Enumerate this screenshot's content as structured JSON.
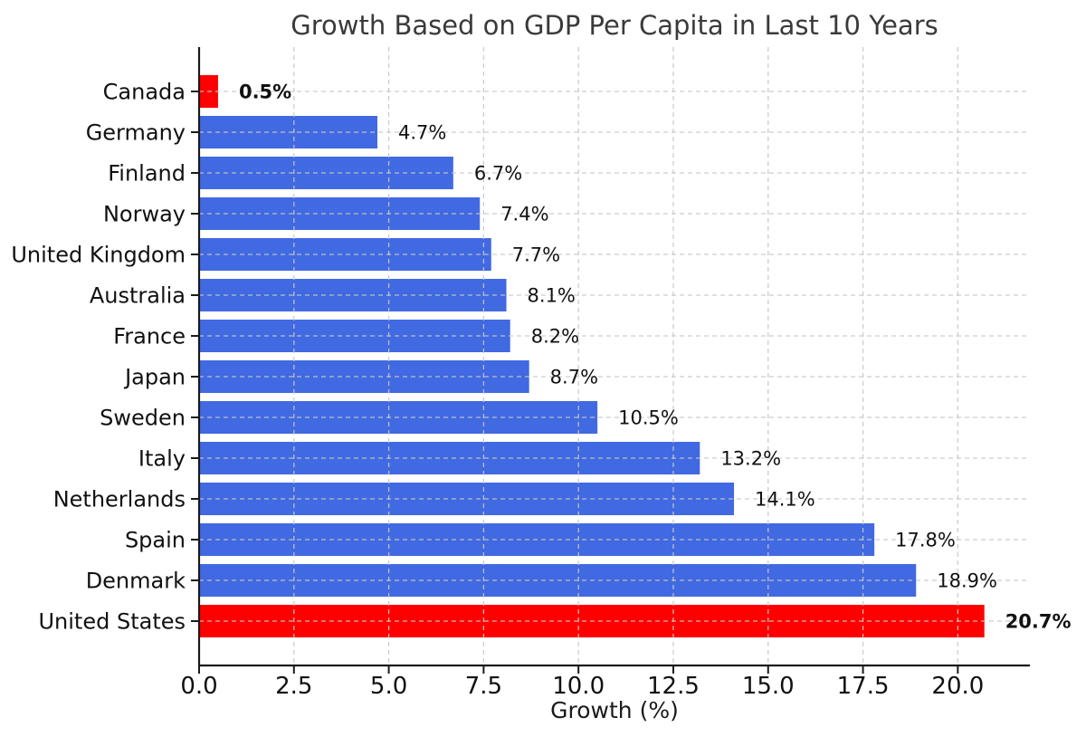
{
  "chart_data": {
    "type": "bar",
    "orientation": "horizontal",
    "title": "Growth Based on GDP Per Capita in Last 10 Years",
    "xlabel": "Growth (%)",
    "ylabel": "",
    "categories": [
      "Canada",
      "Germany",
      "Finland",
      "Norway",
      "United Kingdom",
      "Australia",
      "France",
      "Japan",
      "Sweden",
      "Italy",
      "Netherlands",
      "Spain",
      "Denmark",
      "United States"
    ],
    "values": [
      0.5,
      4.7,
      6.7,
      7.4,
      7.7,
      8.1,
      8.2,
      8.7,
      10.5,
      13.2,
      14.1,
      17.8,
      18.9,
      20.7
    ],
    "data_labels": [
      "0.5%",
      "4.7%",
      "6.7%",
      "7.4%",
      "7.7%",
      "8.1%",
      "8.2%",
      "8.7%",
      "10.5%",
      "13.2%",
      "14.1%",
      "17.8%",
      "18.9%",
      "20.7%"
    ],
    "highlighted_categories": [
      "Canada",
      "United States"
    ],
    "xticks": [
      0.0,
      2.5,
      5.0,
      7.5,
      10.0,
      12.5,
      15.0,
      17.5,
      20.0
    ],
    "xlim": [
      0,
      21.9
    ],
    "grid": {
      "visible": true,
      "style": "dashed"
    },
    "legend": null,
    "colors": {
      "bar": "#4169e1",
      "highlight": "#ff0000",
      "grid": "#c8c8c8",
      "spine": "#1a1a1a",
      "title": "#3a3a3a",
      "tick_label": "#111111",
      "value_label": "#111111",
      "axis_label": "#1a1a1a"
    }
  }
}
